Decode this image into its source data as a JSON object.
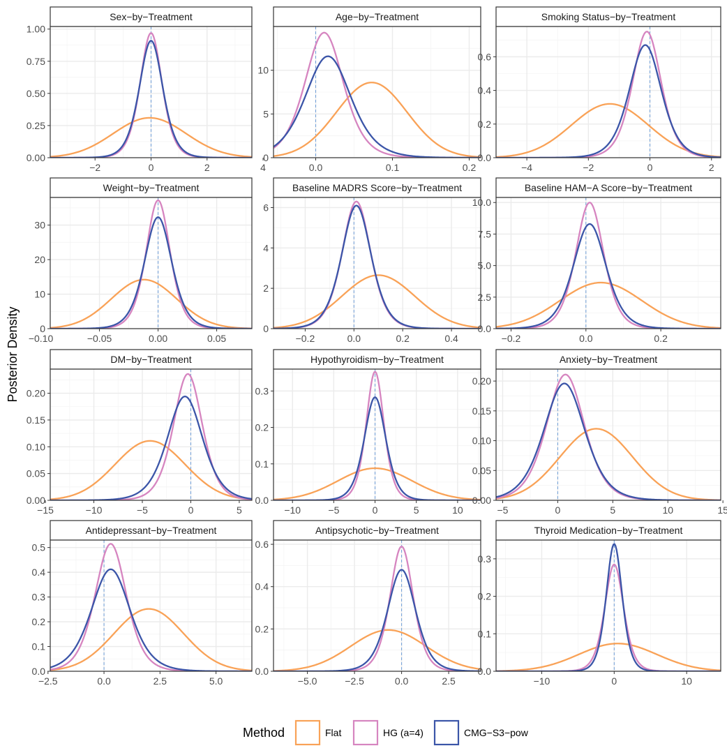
{
  "figure": {
    "ylabel": "Posterior Density",
    "legend_title": "Method",
    "colors": {
      "flat": "#F9A257",
      "hg": "#D685C0",
      "cmg": "#3B55A8",
      "ref_line": "#6F9ED8",
      "grid_major": "#EBEBEB",
      "grid_minor": "#F4F4F4",
      "strip_bg": "#FFFFFF",
      "panel_border": "#333333"
    }
  },
  "chart_data": [
    {
      "type": "line",
      "title": "Sex−by−Treatment",
      "xlim": [
        -3.6,
        3.6
      ],
      "ylim": [
        0,
        1.02
      ],
      "xticks": [
        -2,
        0,
        2,
        4
      ],
      "xtick_labels": [
        "−2",
        "0",
        "2",
        "4"
      ],
      "yticks": [
        0,
        0.25,
        0.5,
        0.75,
        1.0
      ],
      "ytick_labels": [
        "0.00",
        "0.25",
        "0.50",
        "0.75",
        "1.00"
      ],
      "ref_x": 0,
      "series": [
        {
          "name": "Flat",
          "shape": "normal",
          "peak_x": -0.05,
          "peak_y": 0.31,
          "sd": 1.3
        },
        {
          "name": "HG (a=4)",
          "shape": "logistic",
          "peak_x": 0.0,
          "peak_y": 0.97,
          "sd": 0.42
        },
        {
          "name": "CMG−S3−pow",
          "shape": "logistic",
          "peak_x": 0.0,
          "peak_y": 0.91,
          "sd": 0.45
        }
      ]
    },
    {
      "type": "line",
      "title": "Age−by−Treatment",
      "xlim": [
        -0.055,
        0.215
      ],
      "ylim": [
        0,
        15
      ],
      "xticks": [
        0.0,
        0.1,
        0.2
      ],
      "xtick_labels": [
        "0.0",
        "0.1",
        "0.2"
      ],
      "yticks": [
        0,
        5,
        10
      ],
      "ytick_labels": [
        "0",
        "5",
        "10"
      ],
      "ref_x": 0,
      "series": [
        {
          "name": "Flat",
          "shape": "normal",
          "peak_x": 0.073,
          "peak_y": 8.6,
          "sd": 0.046
        },
        {
          "name": "HG (a=4)",
          "shape": "logistic",
          "peak_x": 0.011,
          "peak_y": 14.3,
          "sd": 0.027
        },
        {
          "name": "CMG−S3−pow",
          "shape": "logistic",
          "peak_x": 0.016,
          "peak_y": 11.6,
          "sd": 0.032
        }
      ]
    },
    {
      "type": "line",
      "title": "Smoking Status−by−Treatment",
      "xlim": [
        -5.0,
        2.3
      ],
      "ylim": [
        0,
        0.78
      ],
      "xticks": [
        -4,
        -2,
        0,
        2
      ],
      "xtick_labels": [
        "−4",
        "−2",
        "0",
        "2"
      ],
      "yticks": [
        0,
        0.2,
        0.4,
        0.6
      ],
      "ytick_labels": [
        "0.0",
        "0.2",
        "0.4",
        "0.6"
      ],
      "ref_x": 0,
      "series": [
        {
          "name": "Flat",
          "shape": "normal",
          "peak_x": -1.3,
          "peak_y": 0.32,
          "sd": 1.25
        },
        {
          "name": "HG (a=4)",
          "shape": "logistic",
          "peak_x": -0.1,
          "peak_y": 0.75,
          "sd": 0.5
        },
        {
          "name": "CMG−S3−pow",
          "shape": "logistic",
          "peak_x": -0.15,
          "peak_y": 0.67,
          "sd": 0.56
        }
      ]
    },
    {
      "type": "line",
      "title": "Weight−by−Treatment",
      "xlim": [
        -0.092,
        0.08
      ],
      "ylim": [
        0,
        38
      ],
      "xticks": [
        -0.1,
        -0.05,
        0.0,
        0.05
      ],
      "xtick_labels": [
        "−0.10",
        "−0.05",
        "0.00",
        "0.05"
      ],
      "yticks": [
        0,
        10,
        20,
        30
      ],
      "ytick_labels": [
        "0",
        "10",
        "20",
        "30"
      ],
      "ref_x": 0,
      "series": [
        {
          "name": "Flat",
          "shape": "normal",
          "peak_x": -0.012,
          "peak_y": 14.2,
          "sd": 0.028
        },
        {
          "name": "HG (a=4)",
          "shape": "logistic",
          "peak_x": 0.0,
          "peak_y": 37.2,
          "sd": 0.011
        },
        {
          "name": "CMG−S3−pow",
          "shape": "logistic",
          "peak_x": 0.0,
          "peak_y": 32.3,
          "sd": 0.0125
        }
      ]
    },
    {
      "type": "line",
      "title": "Baseline MADRS Score−by−Treatment",
      "xlim": [
        -0.33,
        0.52
      ],
      "ylim": [
        0,
        6.5
      ],
      "xticks": [
        -0.2,
        0.0,
        0.2,
        0.4
      ],
      "xtick_labels": [
        "−0.2",
        "0.0",
        "0.2",
        "0.4"
      ],
      "yticks": [
        0,
        2,
        4,
        6
      ],
      "ytick_labels": [
        "0",
        "2",
        "4",
        "6"
      ],
      "ref_x": 0,
      "series": [
        {
          "name": "Flat",
          "shape": "normal",
          "peak_x": 0.1,
          "peak_y": 2.65,
          "sd": 0.15
        },
        {
          "name": "HG (a=4)",
          "shape": "logistic",
          "peak_x": 0.01,
          "peak_y": 6.3,
          "sd": 0.063
        },
        {
          "name": "CMG−S3−pow",
          "shape": "logistic",
          "peak_x": 0.01,
          "peak_y": 6.1,
          "sd": 0.065
        }
      ]
    },
    {
      "type": "line",
      "title": "Baseline HAM−A Score−by−Treatment",
      "xlim": [
        -0.24,
        0.36
      ],
      "ylim": [
        0,
        10.4
      ],
      "xticks": [
        -0.2,
        0.0,
        0.2
      ],
      "xtick_labels": [
        "−0.2",
        "0.0",
        "0.2"
      ],
      "yticks": [
        0,
        2.5,
        5,
        7.5,
        10
      ],
      "ytick_labels": [
        "0.0",
        "2.5",
        "5.0",
        "7.5",
        "10.0"
      ],
      "ref_x": 0,
      "series": [
        {
          "name": "Flat",
          "shape": "normal",
          "peak_x": 0.04,
          "peak_y": 3.65,
          "sd": 0.11
        },
        {
          "name": "HG (a=4)",
          "shape": "logistic",
          "peak_x": 0.01,
          "peak_y": 10.0,
          "sd": 0.04
        },
        {
          "name": "CMG−S3−pow",
          "shape": "logistic",
          "peak_x": 0.01,
          "peak_y": 8.3,
          "sd": 0.047
        }
      ]
    },
    {
      "type": "line",
      "title": "DM−by−Treatment",
      "xlim": [
        -14.5,
        6.3
      ],
      "ylim": [
        0,
        0.245
      ],
      "xticks": [
        -15,
        -10,
        -5,
        0,
        5
      ],
      "xtick_labels": [
        "−15",
        "−10",
        "−5",
        "0",
        "5"
      ],
      "yticks": [
        0,
        0.05,
        0.1,
        0.15,
        0.2
      ],
      "ytick_labels": [
        "0.00",
        "0.05",
        "0.10",
        "0.15",
        "0.20"
      ],
      "ref_x": 0,
      "series": [
        {
          "name": "Flat",
          "shape": "normal",
          "peak_x": -4.2,
          "peak_y": 0.111,
          "sd": 3.6
        },
        {
          "name": "HG (a=4)",
          "shape": "logistic",
          "peak_x": -0.3,
          "peak_y": 0.236,
          "sd": 1.6
        },
        {
          "name": "CMG−S3−pow",
          "shape": "logistic",
          "peak_x": -0.6,
          "peak_y": 0.194,
          "sd": 1.95
        }
      ]
    },
    {
      "type": "line",
      "title": "Hypothyroidism−by−Treatment",
      "xlim": [
        -12.3,
        12.8
      ],
      "ylim": [
        0,
        0.36
      ],
      "xticks": [
        -10,
        -5,
        0,
        5,
        10
      ],
      "xtick_labels": [
        "−10",
        "−5",
        "0",
        "5",
        "10"
      ],
      "yticks": [
        0,
        0.1,
        0.2,
        0.3
      ],
      "ytick_labels": [
        "0.0",
        "0.1",
        "0.2",
        "0.3"
      ],
      "ref_x": 0,
      "series": [
        {
          "name": "Flat",
          "shape": "normal",
          "peak_x": 0.0,
          "peak_y": 0.088,
          "sd": 4.5
        },
        {
          "name": "HG (a=4)",
          "shape": "logistic",
          "peak_x": 0.0,
          "peak_y": 0.353,
          "sd": 1.15
        },
        {
          "name": "CMG−S3−pow",
          "shape": "logistic",
          "peak_x": 0.0,
          "peak_y": 0.283,
          "sd": 1.4
        }
      ]
    },
    {
      "type": "line",
      "title": "Anxiety−by−Treatment",
      "xlim": [
        -5.6,
        14.8
      ],
      "ylim": [
        0,
        0.22
      ],
      "xticks": [
        -5,
        0,
        5,
        10,
        15
      ],
      "xtick_labels": [
        "−5",
        "0",
        "5",
        "10",
        "15"
      ],
      "yticks": [
        0,
        0.05,
        0.1,
        0.15,
        0.2
      ],
      "ytick_labels": [
        "0.00",
        "0.05",
        "0.10",
        "0.15",
        "0.20"
      ],
      "ref_x": 0,
      "series": [
        {
          "name": "Flat",
          "shape": "normal",
          "peak_x": 3.5,
          "peak_y": 0.12,
          "sd": 3.3
        },
        {
          "name": "HG (a=4)",
          "shape": "logistic",
          "peak_x": 0.7,
          "peak_y": 0.211,
          "sd": 1.85
        },
        {
          "name": "CMG−S3−pow",
          "shape": "logistic",
          "peak_x": 0.6,
          "peak_y": 0.196,
          "sd": 2.0
        }
      ]
    },
    {
      "type": "line",
      "title": "Antidepressant−by−Treatment",
      "xlim": [
        -2.4,
        6.6
      ],
      "ylim": [
        0,
        0.53
      ],
      "xticks": [
        -2.5,
        0,
        2.5,
        5
      ],
      "xtick_labels": [
        "−2.5",
        "0.0",
        "2.5",
        "5.0"
      ],
      "yticks": [
        0,
        0.1,
        0.2,
        0.3,
        0.4,
        0.5
      ],
      "ytick_labels": [
        "0.0",
        "0.1",
        "0.2",
        "0.3",
        "0.4",
        "0.5"
      ],
      "ref_x": 0,
      "series": [
        {
          "name": "Flat",
          "shape": "normal",
          "peak_x": 2.0,
          "peak_y": 0.252,
          "sd": 1.55
        },
        {
          "name": "HG (a=4)",
          "shape": "logistic",
          "peak_x": 0.3,
          "peak_y": 0.515,
          "sd": 0.75
        },
        {
          "name": "CMG−S3−pow",
          "shape": "logistic",
          "peak_x": 0.3,
          "peak_y": 0.412,
          "sd": 0.93
        }
      ]
    },
    {
      "type": "line",
      "title": "Antipsychotic−by−Treatment",
      "xlim": [
        -6.8,
        4.2
      ],
      "ylim": [
        0,
        0.62
      ],
      "xticks": [
        -5,
        -2.5,
        0,
        2.5
      ],
      "xtick_labels": [
        "−5.0",
        "−2.5",
        "0.0",
        "2.5"
      ],
      "yticks": [
        0,
        0.2,
        0.4,
        0.6
      ],
      "ytick_labels": [
        "0.0",
        "0.2",
        "0.4",
        "0.6"
      ],
      "ref_x": 0,
      "series": [
        {
          "name": "Flat",
          "shape": "normal",
          "peak_x": -0.7,
          "peak_y": 0.195,
          "sd": 2.0
        },
        {
          "name": "HG (a=4)",
          "shape": "logistic",
          "peak_x": 0.0,
          "peak_y": 0.59,
          "sd": 0.66
        },
        {
          "name": "CMG−S3−pow",
          "shape": "logistic",
          "peak_x": 0.0,
          "peak_y": 0.48,
          "sd": 0.8
        }
      ]
    },
    {
      "type": "line",
      "title": "Thyroid Medication−by−Treatment",
      "xlim": [
        -16.3,
        14.7
      ],
      "ylim": [
        0,
        0.35
      ],
      "xticks": [
        -10,
        0,
        10
      ],
      "xtick_labels": [
        "−10",
        "0",
        "10"
      ],
      "yticks": [
        0,
        0.1,
        0.2,
        0.3
      ],
      "ytick_labels": [
        "0.0",
        "0.1",
        "0.2",
        "0.3"
      ],
      "ref_x": 0,
      "series": [
        {
          "name": "Flat",
          "shape": "normal",
          "peak_x": 0.5,
          "peak_y": 0.074,
          "sd": 5.4
        },
        {
          "name": "HG (a=4)",
          "shape": "logistic",
          "peak_x": 0.0,
          "peak_y": 0.285,
          "sd": 1.4
        },
        {
          "name": "CMG−S3−pow",
          "shape": "logistic",
          "peak_x": 0.0,
          "peak_y": 0.34,
          "sd": 1.18
        }
      ]
    }
  ],
  "legend": {
    "title": "Method",
    "items": [
      {
        "label": "Flat",
        "key": "flat"
      },
      {
        "label": "HG (a=4)",
        "key": "hg"
      },
      {
        "label": "CMG−S3−pow",
        "key": "cmg"
      }
    ]
  }
}
